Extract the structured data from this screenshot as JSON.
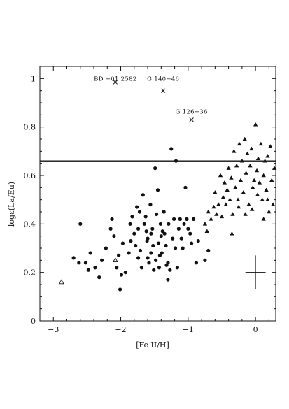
{
  "chart_data": {
    "type": "scatter",
    "xlabel": "[Fe II/H]",
    "ylabel": "logε(La/Eu)",
    "xlim": [
      -3.2,
      0.3
    ],
    "ylim": [
      0,
      1.05
    ],
    "xticks": [
      -3,
      -2,
      -1,
      0
    ],
    "xtick_labels": [
      "−3",
      "−2",
      "−1",
      "0"
    ],
    "yticks": [
      0,
      0.2,
      0.4,
      0.6,
      0.8,
      1
    ],
    "ytick_labels": [
      "0",
      "0.2",
      "0.4",
      "0.6",
      "0.8",
      "1"
    ],
    "grid": false,
    "colors": {
      "ink": "#111111"
    },
    "reference_line": {
      "y": 0.66
    },
    "error_bar": {
      "x": 0.0,
      "y": 0.2,
      "xerr": 0.15,
      "yerr": 0.07
    },
    "annotations": [
      {
        "text": "BD −01 2582",
        "x": -2.08,
        "y": 0.985
      },
      {
        "text": "G 140−46",
        "x": -1.37,
        "y": 0.985
      },
      {
        "text": "G 126−36",
        "x": -0.95,
        "y": 0.85
      }
    ],
    "series": [
      {
        "marker": "circle",
        "points": [
          [
            -2.6,
            0.4
          ],
          [
            -2.7,
            0.26
          ],
          [
            -2.62,
            0.24
          ],
          [
            -2.52,
            0.24
          ],
          [
            -2.48,
            0.21
          ],
          [
            -2.45,
            0.28
          ],
          [
            -2.38,
            0.22
          ],
          [
            -2.32,
            0.18
          ],
          [
            -2.28,
            0.25
          ],
          [
            -2.22,
            0.3
          ],
          [
            -2.15,
            0.38
          ],
          [
            -2.13,
            0.42
          ],
          [
            -2.1,
            0.35
          ],
          [
            -2.06,
            0.22
          ],
          [
            -2.03,
            0.27
          ],
          [
            -2.01,
            0.13
          ],
          [
            -1.99,
            0.19
          ],
          [
            -1.97,
            0.32
          ],
          [
            -1.93,
            0.2
          ],
          [
            -1.88,
            0.28
          ],
          [
            -1.86,
            0.4
          ],
          [
            -1.83,
            0.43
          ],
          [
            -1.8,
            0.36
          ],
          [
            -1.78,
            0.31
          ],
          [
            -1.76,
            0.47
          ],
          [
            -1.74,
            0.38
          ],
          [
            -1.72,
            0.45
          ],
          [
            -1.71,
            0.29
          ],
          [
            -1.69,
            0.22
          ],
          [
            -1.67,
            0.52
          ],
          [
            -1.65,
            0.4
          ],
          [
            -1.63,
            0.43
          ],
          [
            -1.61,
            0.33
          ],
          [
            -1.6,
            0.26
          ],
          [
            -1.58,
            0.24
          ],
          [
            -1.56,
            0.48
          ],
          [
            -1.55,
            0.28
          ],
          [
            -1.53,
            0.38
          ],
          [
            -1.52,
            0.31
          ],
          [
            -1.51,
            0.21
          ],
          [
            -1.49,
            0.63
          ],
          [
            -1.47,
            0.44
          ],
          [
            -1.45,
            0.54
          ],
          [
            -1.44,
            0.32
          ],
          [
            -1.43,
            0.22
          ],
          [
            -1.41,
            0.4
          ],
          [
            -1.39,
            0.28
          ],
          [
            -1.38,
            0.37
          ],
          [
            -1.36,
            0.45
          ],
          [
            -1.35,
            0.36
          ],
          [
            -1.33,
            0.31
          ],
          [
            -1.32,
            0.23
          ],
          [
            -1.3,
            0.17
          ],
          [
            -1.29,
            0.4
          ],
          [
            -1.27,
            0.21
          ],
          [
            -1.25,
            0.71
          ],
          [
            -1.23,
            0.34
          ],
          [
            -1.21,
            0.42
          ],
          [
            -1.19,
            0.3
          ],
          [
            -1.18,
            0.66
          ],
          [
            -1.16,
            0.22
          ],
          [
            -1.14,
            0.38
          ],
          [
            -1.12,
            0.42
          ],
          [
            -1.1,
            0.34
          ],
          [
            -1.08,
            0.3
          ],
          [
            -1.06,
            0.4
          ],
          [
            -1.04,
            0.55
          ],
          [
            -1.02,
            0.42
          ],
          [
            -1.0,
            0.38
          ],
          [
            -0.97,
            0.36
          ],
          [
            -0.95,
            0.32
          ],
          [
            -0.92,
            0.42
          ],
          [
            -0.88,
            0.24
          ],
          [
            -0.85,
            0.33
          ],
          [
            -0.75,
            0.25
          ],
          [
            -0.7,
            0.29
          ],
          [
            -1.6,
            0.34
          ],
          [
            -1.55,
            0.36
          ],
          [
            -1.48,
            0.25
          ],
          [
            -1.4,
            0.35
          ],
          [
            -1.42,
            0.27
          ],
          [
            -1.62,
            0.37
          ],
          [
            -1.74,
            0.26
          ],
          [
            -1.85,
            0.33
          ],
          [
            -1.3,
            0.24
          ]
        ]
      },
      {
        "marker": "filled-triangle",
        "points": [
          [
            -0.75,
            0.4
          ],
          [
            -0.72,
            0.37
          ],
          [
            -0.7,
            0.45
          ],
          [
            -0.66,
            0.42
          ],
          [
            -0.62,
            0.47
          ],
          [
            -0.6,
            0.53
          ],
          [
            -0.58,
            0.44
          ],
          [
            -0.55,
            0.48
          ],
          [
            -0.52,
            0.6
          ],
          [
            -0.5,
            0.43
          ],
          [
            -0.48,
            0.51
          ],
          [
            -0.46,
            0.57
          ],
          [
            -0.44,
            0.48
          ],
          [
            -0.42,
            0.54
          ],
          [
            -0.4,
            0.63
          ],
          [
            -0.38,
            0.5
          ],
          [
            -0.36,
            0.59
          ],
          [
            -0.34,
            0.44
          ],
          [
            -0.32,
            0.7
          ],
          [
            -0.3,
            0.55
          ],
          [
            -0.28,
            0.64
          ],
          [
            -0.26,
            0.5
          ],
          [
            -0.24,
            0.73
          ],
          [
            -0.22,
            0.58
          ],
          [
            -0.2,
            0.66
          ],
          [
            -0.18,
            0.53
          ],
          [
            -0.16,
            0.75
          ],
          [
            -0.14,
            0.61
          ],
          [
            -0.12,
            0.69
          ],
          [
            -0.1,
            0.48
          ],
          [
            -0.08,
            0.64
          ],
          [
            -0.06,
            0.71
          ],
          [
            -0.04,
            0.55
          ],
          [
            -0.02,
            0.58
          ],
          [
            0.0,
            0.81
          ],
          [
            0.02,
            0.62
          ],
          [
            0.04,
            0.67
          ],
          [
            0.06,
            0.57
          ],
          [
            0.08,
            0.73
          ],
          [
            0.1,
            0.5
          ],
          [
            0.12,
            0.6
          ],
          [
            0.14,
            0.66
          ],
          [
            0.16,
            0.54
          ],
          [
            0.18,
            0.68
          ],
          [
            0.2,
            0.45
          ],
          [
            0.22,
            0.72
          ],
          [
            0.24,
            0.58
          ],
          [
            0.26,
            0.48
          ],
          [
            0.28,
            0.63
          ],
          [
            -0.05,
            0.46
          ],
          [
            0.03,
            0.52
          ],
          [
            0.12,
            0.42
          ],
          [
            0.18,
            0.5
          ],
          [
            -0.15,
            0.44
          ],
          [
            -0.25,
            0.47
          ],
          [
            -0.35,
            0.36
          ]
        ]
      },
      {
        "marker": "open-triangle",
        "points": [
          [
            -2.88,
            0.16
          ],
          [
            -2.08,
            0.25
          ]
        ]
      },
      {
        "marker": "cross",
        "points": [
          [
            -2.08,
            0.985
          ],
          [
            -1.37,
            0.95
          ],
          [
            -0.95,
            0.83
          ]
        ]
      }
    ]
  }
}
